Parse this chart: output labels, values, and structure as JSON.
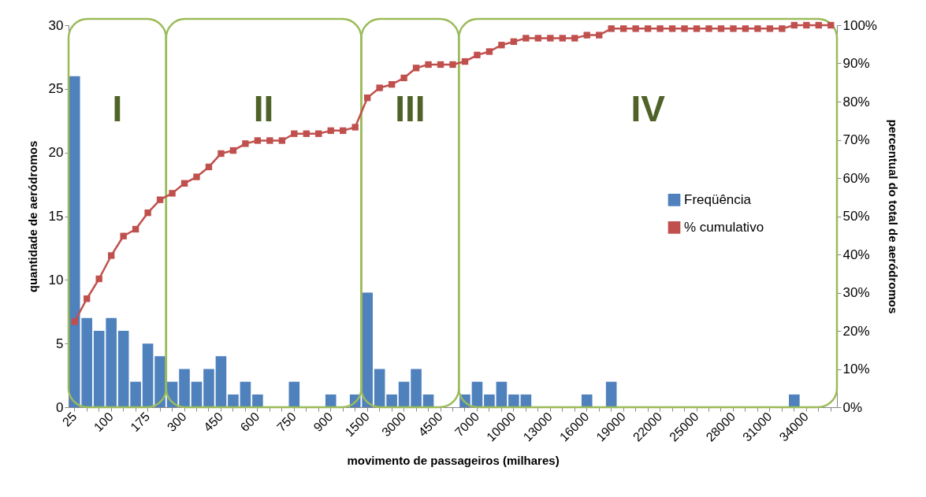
{
  "chart_data": {
    "type": "bar",
    "categories": [
      "25",
      null,
      null,
      "100",
      null,
      null,
      "175",
      null,
      null,
      "300",
      null,
      null,
      "450",
      null,
      null,
      "600",
      null,
      null,
      "750",
      null,
      null,
      "900",
      null,
      null,
      "1500",
      null,
      null,
      "3000",
      null,
      null,
      "4500",
      null,
      null,
      "7000",
      null,
      null,
      "10000",
      null,
      null,
      "13000",
      null,
      null,
      "16000",
      null,
      null,
      "19000",
      null,
      null,
      "22000",
      null,
      null,
      "25000",
      null,
      null,
      "28000",
      null,
      null,
      "31000",
      null,
      null,
      "34000",
      null,
      null
    ],
    "series": [
      {
        "name": "Freqüência",
        "color": "#4f81bd",
        "values": [
          26,
          7,
          6,
          7,
          6,
          2,
          5,
          4,
          2,
          3,
          2,
          3,
          4,
          1,
          2,
          1,
          0,
          0,
          2,
          0,
          0,
          1,
          0,
          1,
          9,
          3,
          1,
          2,
          3,
          1,
          0,
          0,
          1,
          2,
          1,
          2,
          1,
          1,
          0,
          0,
          0,
          0,
          1,
          0,
          2,
          0,
          0,
          0,
          0,
          0,
          0,
          0,
          0,
          0,
          0,
          0,
          0,
          0,
          0,
          1,
          0,
          0,
          0
        ]
      },
      {
        "name": "% cumulativo",
        "type": "line",
        "axis": "y2",
        "color": "#c0504d",
        "marker": "square",
        "line_style": "solid",
        "values": [
          22.4,
          28.4,
          33.6,
          39.7,
          44.8,
          46.6,
          50.9,
          54.3,
          56.0,
          58.6,
          60.3,
          62.9,
          66.4,
          67.2,
          69.0,
          69.8,
          69.8,
          69.8,
          71.6,
          71.6,
          71.6,
          72.4,
          72.4,
          73.3,
          81.0,
          83.6,
          84.5,
          86.2,
          88.8,
          89.7,
          89.7,
          89.7,
          90.5,
          92.2,
          93.1,
          94.8,
          95.7,
          96.6,
          96.6,
          96.6,
          96.6,
          96.6,
          97.4,
          97.4,
          99.1,
          99.1,
          99.1,
          99.1,
          99.1,
          99.1,
          99.1,
          99.1,
          99.1,
          99.1,
          99.1,
          99.1,
          99.1,
          99.1,
          99.1,
          100,
          100,
          100,
          100
        ]
      }
    ],
    "xlabel": "movimento de passageiros (milhares)",
    "ylabel": "quantidade de aeródromos",
    "y2label": "percentual do total de aeródromos",
    "ylim": [
      0,
      30
    ],
    "yticks": [
      0,
      5,
      10,
      15,
      20,
      25,
      30
    ],
    "y2lim": [
      0,
      100
    ],
    "y2ticks": [
      {
        "value": 0,
        "label": "0%"
      },
      {
        "value": 10,
        "label": "10%"
      },
      {
        "value": 20,
        "label": "20%"
      },
      {
        "value": 30,
        "label": "30%"
      },
      {
        "value": 40,
        "label": "40%"
      },
      {
        "value": 50,
        "label": "50%"
      },
      {
        "value": 60,
        "label": "60%"
      },
      {
        "value": 70,
        "label": "70%"
      },
      {
        "value": 80,
        "label": "80%"
      },
      {
        "value": 90,
        "label": "90%"
      },
      {
        "value": 100,
        "label": "100%"
      }
    ],
    "annotations": [
      "I",
      "II",
      "III",
      "IV"
    ],
    "legend": "right"
  }
}
